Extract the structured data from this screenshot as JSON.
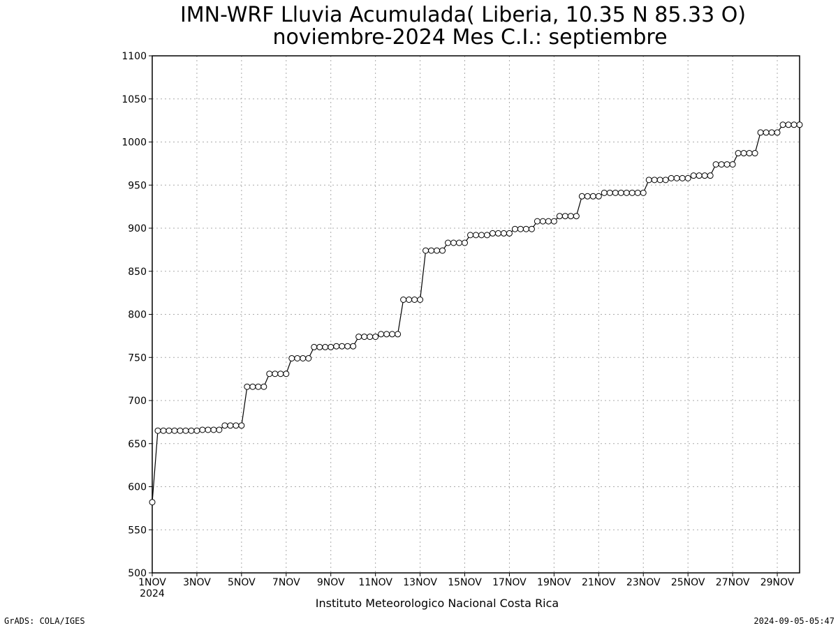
{
  "chart_data": {
    "type": "line",
    "title": "IMN-WRF  Lluvia Acumulada( Liberia, 10.35  N 85.33  O)",
    "subtitle": "noviembre-2024 Mes C.I.: septiembre",
    "xlabel": "",
    "ylabel": "",
    "ylim": [
      500,
      1100
    ],
    "yticks": [
      500,
      550,
      600,
      650,
      700,
      750,
      800,
      850,
      900,
      950,
      1000,
      1050,
      1100
    ],
    "xlim": [
      1,
      30
    ],
    "xticks": [
      {
        "day": 1,
        "label": "1NOV"
      },
      {
        "day": 3,
        "label": "3NOV"
      },
      {
        "day": 5,
        "label": "5NOV"
      },
      {
        "day": 7,
        "label": "7NOV"
      },
      {
        "day": 9,
        "label": "9NOV"
      },
      {
        "day": 11,
        "label": "11NOV"
      },
      {
        "day": 13,
        "label": "13NOV"
      },
      {
        "day": 15,
        "label": "15NOV"
      },
      {
        "day": 17,
        "label": "17NOV"
      },
      {
        "day": 19,
        "label": "19NOV"
      },
      {
        "day": 21,
        "label": "21NOV"
      },
      {
        "day": 23,
        "label": "23NOV"
      },
      {
        "day": 25,
        "label": "25NOV"
      },
      {
        "day": 27,
        "label": "27NOV"
      },
      {
        "day": 29,
        "label": "29NOV"
      }
    ],
    "xyear_label": "2024",
    "grid": true,
    "marker": "open-circle",
    "line_color": "#000000",
    "series": [
      {
        "x": [
          1.0,
          1.25,
          1.5,
          1.75,
          2.0,
          2.25,
          2.5,
          2.75,
          3.0,
          3.25,
          3.5,
          3.75,
          4.0,
          4.25,
          4.5,
          4.75,
          5.0,
          5.25,
          5.5,
          5.75,
          6.0,
          6.25,
          6.5,
          6.75,
          7.0,
          7.25,
          7.5,
          7.75,
          8.0,
          8.25,
          8.5,
          8.75,
          9.0,
          9.25,
          9.5,
          9.75,
          10.0,
          10.25,
          10.5,
          10.75,
          11.0,
          11.25,
          11.5,
          11.75,
          12.0,
          12.25,
          12.5,
          12.75,
          13.0,
          13.25,
          13.5,
          13.75,
          14.0,
          14.25,
          14.5,
          14.75,
          15.0,
          15.25,
          15.5,
          15.75,
          16.0,
          16.25,
          16.5,
          16.75,
          17.0,
          17.25,
          17.5,
          17.75,
          18.0,
          18.25,
          18.5,
          18.75,
          19.0,
          19.25,
          19.5,
          19.75,
          20.0,
          20.25,
          20.5,
          20.75,
          21.0,
          21.25,
          21.5,
          21.75,
          22.0,
          22.25,
          22.5,
          22.75,
          23.0,
          23.25,
          23.5,
          23.75,
          24.0,
          24.25,
          24.5,
          24.75,
          25.0,
          25.25,
          25.5,
          25.75,
          26.0,
          26.25,
          26.5,
          26.75,
          27.0,
          27.25,
          27.5,
          27.75,
          28.0,
          28.25,
          28.5,
          28.75,
          29.0,
          29.25,
          29.5,
          29.75,
          30.0
        ],
        "y": [
          582,
          665,
          665,
          665,
          665,
          665,
          665,
          665,
          665,
          666,
          666,
          666,
          666,
          671,
          671,
          671,
          671,
          716,
          716,
          716,
          716,
          731,
          731,
          731,
          731,
          749,
          749,
          749,
          749,
          762,
          762,
          762,
          762,
          763,
          763,
          763,
          763,
          774,
          774,
          774,
          774,
          777,
          777,
          777,
          777,
          817,
          817,
          817,
          817,
          874,
          874,
          874,
          874,
          883,
          883,
          883,
          883,
          892,
          892,
          892,
          892,
          894,
          894,
          894,
          894,
          899,
          899,
          899,
          899,
          908,
          908,
          908,
          908,
          914,
          914,
          914,
          914,
          937,
          937,
          937,
          937,
          941,
          941,
          941,
          941,
          941,
          941,
          941,
          941,
          956,
          956,
          956,
          956,
          958,
          958,
          958,
          958,
          961,
          961,
          961,
          961,
          974,
          974,
          974,
          974,
          987,
          987,
          987,
          987,
          1011,
          1011,
          1011,
          1011,
          1020,
          1020,
          1020,
          1020
        ]
      }
    ]
  },
  "footer": {
    "credit": "Instituto Meteorologico Nacional Costa Rica",
    "software": "GrADS: COLA/IGES",
    "timestamp": "2024-09-05-05:47"
  }
}
